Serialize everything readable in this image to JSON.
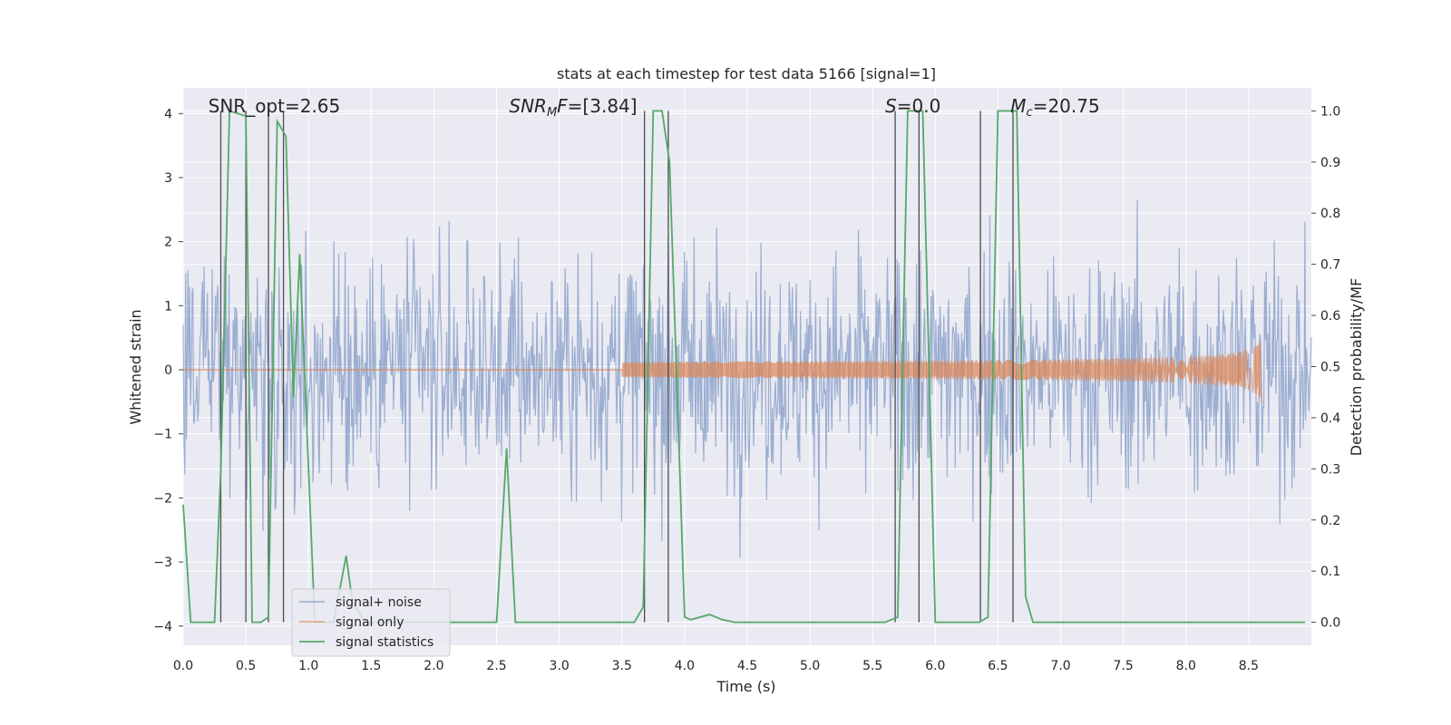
{
  "chart_data": {
    "type": "line",
    "title": "stats at each timestep for test data 5166 [signal=1]",
    "xlabel": "Time (s)",
    "ylabel_left": "Whitened strain",
    "ylabel_right": "Detection probability/MF",
    "xlim": [
      0.0,
      9.0
    ],
    "ylim_left": [
      -4.3,
      4.4
    ],
    "ylim_right": [
      -0.045,
      1.045
    ],
    "x_ticks": [
      "0.0",
      "0.5",
      "1.0",
      "1.5",
      "2.0",
      "2.5",
      "3.0",
      "3.5",
      "4.0",
      "4.5",
      "5.0",
      "5.5",
      "6.0",
      "6.5",
      "7.0",
      "7.5",
      "8.0",
      "8.5"
    ],
    "y_ticks_left": [
      "−4",
      "−3",
      "−2",
      "−1",
      "0",
      "1",
      "2",
      "3",
      "4"
    ],
    "y_ticks_right": [
      "0.0",
      "0.1",
      "0.2",
      "0.3",
      "0.4",
      "0.5",
      "0.6",
      "0.7",
      "0.8",
      "0.9",
      "1.0"
    ],
    "grid": true,
    "legend_position": "lower-left",
    "colors": {
      "signal_noise": "#4c72b0",
      "signal_only": "#dd8452",
      "signal_statistics": "#55a868",
      "vlines": "#4d4d4d",
      "plot_bg": "#eaeaf2"
    },
    "annotations": [
      {
        "text": "SNR_opt=2.65",
        "x": 0.2
      },
      {
        "text": "SNR_MF=[3.84]",
        "x": 2.6
      },
      {
        "text": "S=0.0",
        "x": 5.6
      },
      {
        "text": "M_c=20.75",
        "x": 6.6
      }
    ],
    "series": [
      {
        "name": "signal+ noise",
        "description": "whitened strain, noise approximately in [-4, 3.5]"
      },
      {
        "name": "signal only",
        "description": "chirp growing from ~0 to amplitude ~0.5 near 8.6 s"
      },
      {
        "name": "signal statistics",
        "axis": "right",
        "x": [
          0.0,
          0.06,
          0.1,
          0.25,
          0.3,
          0.37,
          0.5,
          0.55,
          0.62,
          0.68,
          0.75,
          0.82,
          0.88,
          0.93,
          1.0,
          1.05,
          1.2,
          1.3,
          1.35,
          1.45,
          2.5,
          2.58,
          2.65,
          3.6,
          3.67,
          3.75,
          3.82,
          3.88,
          4.0,
          4.05,
          4.2,
          4.3,
          4.4,
          5.6,
          5.7,
          5.78,
          5.9,
          5.97,
          6.0,
          6.1,
          6.35,
          6.42,
          6.5,
          6.65,
          6.72,
          6.78,
          6.9,
          8.95
        ],
        "y": [
          0.23,
          0.0,
          0.0,
          0.0,
          0.3,
          1.0,
          0.99,
          0.0,
          0.0,
          0.01,
          0.98,
          0.95,
          0.44,
          0.72,
          0.3,
          0.0,
          0.0,
          0.13,
          0.04,
          0.0,
          0.0,
          0.34,
          0.0,
          0.0,
          0.03,
          1.0,
          1.0,
          0.9,
          0.01,
          0.005,
          0.015,
          0.005,
          0.0,
          0.0,
          0.01,
          1.0,
          1.0,
          0.3,
          0.0,
          0.0,
          0.0,
          0.01,
          1.0,
          1.0,
          0.05,
          0.0,
          0.0,
          0.0
        ]
      }
    ],
    "vlines_x": [
      0.3,
      0.5,
      0.68,
      0.8,
      3.68,
      3.87,
      5.68,
      5.87,
      6.36,
      6.62
    ],
    "legend_entries": [
      "signal+ noise",
      "signal only",
      "signal statistics"
    ]
  }
}
